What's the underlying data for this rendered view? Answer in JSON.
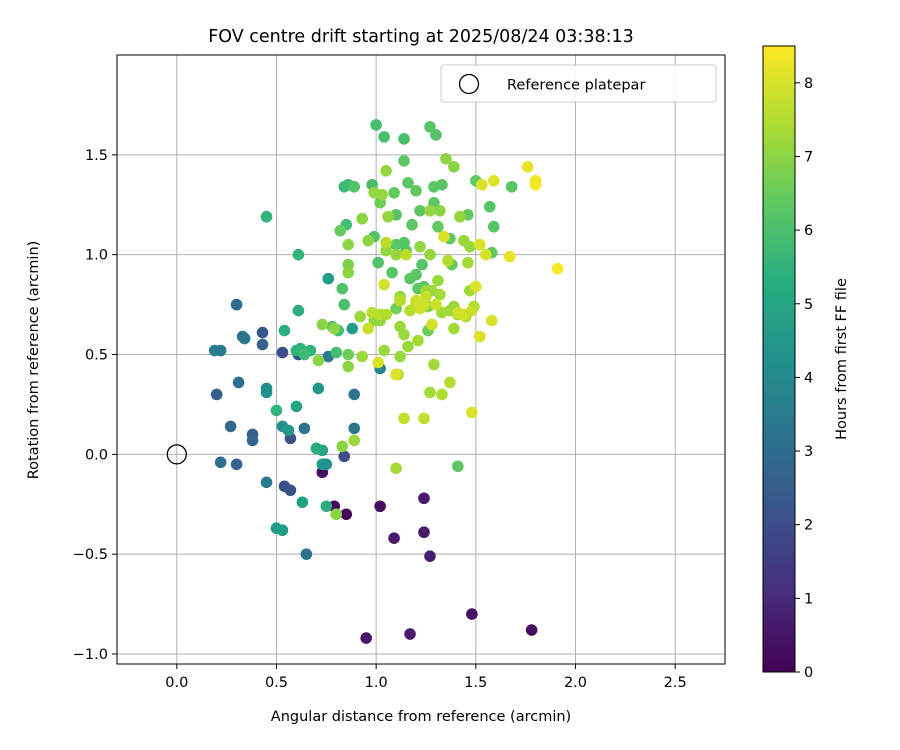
{
  "chart_data": {
    "type": "scatter",
    "title": "FOV centre drift starting at 2025/08/24 03:38:13",
    "xlabel": "Angular distance from reference (arcmin)",
    "ylabel": "Rotation from reference (arcmin)",
    "xlim": [
      -0.3,
      2.75
    ],
    "ylim": [
      -1.05,
      2.0
    ],
    "xticks": [
      0.0,
      0.5,
      1.0,
      1.5,
      2.0,
      2.5
    ],
    "yticks": [
      -1.0,
      -0.5,
      0.0,
      0.5,
      1.0,
      1.5
    ],
    "xtick_labels": [
      "0.0",
      "0.5",
      "1.0",
      "1.5",
      "2.0",
      "2.5"
    ],
    "ytick_labels": [
      "−1.0",
      "−0.5",
      "0.0",
      "0.5",
      "1.0",
      "1.5"
    ],
    "grid": true,
    "legend": {
      "placement": "top-right",
      "entries": [
        {
          "label": "Reference platepar",
          "marker": "open-circle"
        }
      ]
    },
    "reference_point": {
      "x": 0.0,
      "y": 0.0
    },
    "colorbar": {
      "label": "Hours from first FF file",
      "range": [
        0,
        8.5
      ],
      "ticks": [
        0,
        1,
        2,
        3,
        4,
        5,
        6,
        7,
        8
      ],
      "tick_labels": [
        "0",
        "1",
        "2",
        "3",
        "4",
        "5",
        "6",
        "7",
        "8"
      ],
      "colormap": "viridis"
    },
    "points": [
      [
        0.85,
        -0.3,
        0.15
      ],
      [
        0.79,
        -0.26,
        0.2
      ],
      [
        0.73,
        -0.09,
        0.3
      ],
      [
        1.02,
        -0.26,
        0.3
      ],
      [
        1.48,
        -0.8,
        0.4
      ],
      [
        1.78,
        -0.88,
        0.3
      ],
      [
        0.95,
        -0.92,
        0.5
      ],
      [
        1.17,
        -0.9,
        0.6
      ],
      [
        1.09,
        -0.42,
        0.6
      ],
      [
        1.24,
        -0.39,
        0.6
      ],
      [
        1.27,
        -0.51,
        0.7
      ],
      [
        1.24,
        -0.22,
        0.6
      ],
      [
        0.84,
        -0.01,
        2.0
      ],
      [
        0.53,
        0.51,
        2.0
      ],
      [
        0.61,
        0.5,
        2.1
      ],
      [
        0.57,
        0.08,
        2.2
      ],
      [
        0.54,
        -0.16,
        2.1
      ],
      [
        0.57,
        -0.18,
        2.1
      ],
      [
        0.3,
        -0.05,
        2.6
      ],
      [
        0.22,
        -0.04,
        3.0
      ],
      [
        0.27,
        0.14,
        2.9
      ],
      [
        0.38,
        0.1,
        2.5
      ],
      [
        0.38,
        0.07,
        2.8
      ],
      [
        0.2,
        0.3,
        2.5
      ],
      [
        0.43,
        0.61,
        2.3
      ],
      [
        0.43,
        0.55,
        2.6
      ],
      [
        0.31,
        0.36,
        3.0
      ],
      [
        0.3,
        0.75,
        2.9
      ],
      [
        0.33,
        0.59,
        3.2
      ],
      [
        0.34,
        0.58,
        3.3
      ],
      [
        0.19,
        0.52,
        3.6
      ],
      [
        0.22,
        0.52,
        3.4
      ],
      [
        0.45,
        -0.14,
        3.5
      ],
      [
        0.64,
        0.13,
        3.2
      ],
      [
        0.65,
        -0.5,
        3.2
      ],
      [
        0.89,
        0.13,
        3.3
      ],
      [
        0.89,
        0.3,
        3.2
      ],
      [
        0.76,
        0.49,
        3.5
      ],
      [
        1.02,
        0.43,
        3.9
      ],
      [
        0.45,
        0.33,
        4.2
      ],
      [
        0.45,
        0.31,
        4.3
      ],
      [
        0.53,
        0.14,
        4.3
      ],
      [
        0.56,
        0.12,
        4.5
      ],
      [
        0.5,
        -0.37,
        4.6
      ],
      [
        0.53,
        -0.38,
        4.7
      ],
      [
        0.63,
        -0.24,
        4.8
      ],
      [
        0.71,
        0.33,
        4.5
      ],
      [
        0.74,
        -0.05,
        4.3
      ],
      [
        0.73,
        -0.05,
        4.7
      ],
      [
        0.75,
        -0.05,
        4.3
      ],
      [
        0.6,
        0.24,
        5.0
      ],
      [
        0.73,
        0.02,
        5.0
      ],
      [
        0.76,
        0.88,
        4.7
      ],
      [
        0.88,
        0.63,
        4.8
      ],
      [
        0.7,
        0.03,
        5.2
      ],
      [
        0.75,
        -0.26,
        5.3
      ],
      [
        0.54,
        0.62,
        5.3
      ],
      [
        0.61,
        0.72,
        5.3
      ],
      [
        0.6,
        0.52,
        5.5
      ],
      [
        0.62,
        0.53,
        5.6
      ],
      [
        0.5,
        0.22,
        5.5
      ],
      [
        0.45,
        1.19,
        5.5
      ],
      [
        0.61,
        1.0,
        5.5
      ],
      [
        0.67,
        0.52,
        5.5
      ],
      [
        0.64,
        0.5,
        5.8
      ],
      [
        0.84,
        1.34,
        5.8
      ],
      [
        0.86,
        1.35,
        5.8
      ],
      [
        0.85,
        1.15,
        5.9
      ],
      [
        0.8,
        0.51,
        5.9
      ],
      [
        0.81,
        0.62,
        5.9
      ],
      [
        0.78,
        0.64,
        6.1
      ],
      [
        0.84,
        0.75,
        6.0
      ],
      [
        0.83,
        0.83,
        6.1
      ],
      [
        0.98,
        1.35,
        6.0
      ],
      [
        0.89,
        1.34,
        6.1
      ],
      [
        0.82,
        1.12,
        6.5
      ],
      [
        1.0,
        1.65,
        6.0
      ],
      [
        1.04,
        1.59,
        6.0
      ],
      [
        1.14,
        1.58,
        6.0
      ],
      [
        1.27,
        1.64,
        6.2
      ],
      [
        1.3,
        1.6,
        6.2
      ],
      [
        1.14,
        1.47,
        6.3
      ],
      [
        1.16,
        1.36,
        6.3
      ],
      [
        1.09,
        1.31,
        6.4
      ],
      [
        1.2,
        1.32,
        6.4
      ],
      [
        1.29,
        1.34,
        6.3
      ],
      [
        1.33,
        1.35,
        6.3
      ],
      [
        1.22,
        1.22,
        6.3
      ],
      [
        1.29,
        1.26,
        6.3
      ],
      [
        1.18,
        1.15,
        6.3
      ],
      [
        1.1,
        1.2,
        6.2
      ],
      [
        1.14,
        1.06,
        6.2
      ],
      [
        1.1,
        1.05,
        6.3
      ],
      [
        1.15,
        1.02,
        6.2
      ],
      [
        1.23,
        0.95,
        6.2
      ],
      [
        1.2,
        0.9,
        6.3
      ],
      [
        1.21,
        0.83,
        6.3
      ],
      [
        1.24,
        0.84,
        6.3
      ],
      [
        1.08,
        0.91,
        6.2
      ],
      [
        1.01,
        0.96,
        6.1
      ],
      [
        0.99,
        1.09,
        6.1
      ],
      [
        1.17,
        0.88,
        6.3
      ],
      [
        1.31,
        1.14,
        6.4
      ],
      [
        1.37,
        1.08,
        6.4
      ],
      [
        1.38,
        0.95,
        6.5
      ],
      [
        1.46,
        1.2,
        6.4
      ],
      [
        1.5,
        1.37,
        6.4
      ],
      [
        1.57,
        1.24,
        6.2
      ],
      [
        1.59,
        1.14,
        6.2
      ],
      [
        1.68,
        1.34,
        6.2
      ],
      [
        1.58,
        1.01,
        6.4
      ],
      [
        1.41,
        -0.06,
        6.3
      ],
      [
        1.02,
        1.26,
        6.6
      ],
      [
        1.1,
        0.73,
        6.6
      ],
      [
        1.26,
        0.62,
        6.6
      ],
      [
        0.86,
        0.95,
        6.8
      ],
      [
        0.86,
        0.5,
        6.6
      ],
      [
        0.93,
        1.18,
        7.0
      ],
      [
        0.96,
        1.07,
        7.0
      ],
      [
        0.86,
        1.05,
        7.0
      ],
      [
        0.79,
        0.63,
        7.0
      ],
      [
        0.73,
        0.65,
        7.0
      ],
      [
        0.86,
        0.91,
        7.0
      ],
      [
        0.86,
        0.44,
        7.0
      ],
      [
        0.71,
        0.47,
        7.0
      ],
      [
        0.8,
        -0.3,
        7.0
      ],
      [
        0.89,
        0.07,
        7.2
      ],
      [
        0.83,
        0.04,
        7.0
      ],
      [
        1.05,
        1.42,
        7.1
      ],
      [
        0.99,
        1.31,
        7.1
      ],
      [
        1.03,
        1.3,
        7.1
      ],
      [
        1.06,
        1.19,
        7.1
      ],
      [
        1.05,
        1.02,
        7.1
      ],
      [
        1.1,
        1.0,
        7.1
      ],
      [
        1.12,
        0.79,
        7.1
      ],
      [
        1.02,
        0.67,
        7.1
      ],
      [
        0.99,
        0.67,
        7.1
      ],
      [
        0.93,
        0.49,
        7.2
      ],
      [
        0.92,
        0.69,
        7.2
      ],
      [
        1.12,
        0.64,
        7.2
      ],
      [
        1.14,
        0.6,
        7.2
      ],
      [
        1.16,
        0.54,
        7.2
      ],
      [
        1.12,
        0.49,
        7.2
      ],
      [
        1.04,
        0.52,
        7.2
      ],
      [
        1.11,
        0.4,
        7.4
      ],
      [
        1.1,
        -0.07,
        7.3
      ],
      [
        1.35,
        1.48,
        7.0
      ],
      [
        1.39,
        1.44,
        7.0
      ],
      [
        1.27,
        1.22,
        7.1
      ],
      [
        1.42,
        1.19,
        7.1
      ],
      [
        1.32,
        1.22,
        7.0
      ],
      [
        1.27,
        1.0,
        7.1
      ],
      [
        1.22,
        1.04,
        7.1
      ],
      [
        1.26,
        0.74,
        7.0
      ],
      [
        1.2,
        0.75,
        7.1
      ],
      [
        1.25,
        0.82,
        7.2
      ],
      [
        1.28,
        0.82,
        7.2
      ],
      [
        1.31,
        0.87,
        7.2
      ],
      [
        1.32,
        0.8,
        7.3
      ],
      [
        1.33,
        0.71,
        7.3
      ],
      [
        1.37,
        0.72,
        7.3
      ],
      [
        1.39,
        0.74,
        7.2
      ],
      [
        1.41,
        0.7,
        7.3
      ],
      [
        1.39,
        0.63,
        7.3
      ],
      [
        1.44,
        1.07,
        7.2
      ],
      [
        1.47,
        1.04,
        7.2
      ],
      [
        1.46,
        0.96,
        7.3
      ],
      [
        1.47,
        0.82,
        7.3
      ],
      [
        1.49,
        0.74,
        7.5
      ],
      [
        1.45,
        0.69,
        7.4
      ],
      [
        1.36,
        0.97,
        7.5
      ],
      [
        1.27,
        0.31,
        7.3
      ],
      [
        1.29,
        0.45,
        7.3
      ],
      [
        1.33,
        0.3,
        7.5
      ],
      [
        1.37,
        0.36,
        7.5
      ],
      [
        1.21,
        0.57,
        7.3
      ],
      [
        1.14,
        0.18,
        7.7
      ],
      [
        1.24,
        0.18,
        7.7
      ],
      [
        1.05,
        1.06,
        7.6
      ],
      [
        1.15,
        1.0,
        7.6
      ],
      [
        1.12,
        0.77,
        7.6
      ],
      [
        1.02,
        0.7,
        7.6
      ],
      [
        0.98,
        0.71,
        7.6
      ],
      [
        1.05,
        0.7,
        7.5
      ],
      [
        0.96,
        0.63,
        7.8
      ],
      [
        1.17,
        0.72,
        7.6
      ],
      [
        1.2,
        0.77,
        7.8
      ],
      [
        1.25,
        0.79,
        7.8
      ],
      [
        1.24,
        0.75,
        7.8
      ],
      [
        1.22,
        0.76,
        7.9
      ],
      [
        1.22,
        0.73,
        7.9
      ],
      [
        1.28,
        0.65,
        7.9
      ],
      [
        1.3,
        0.75,
        7.8
      ],
      [
        1.34,
        1.09,
        8.0
      ],
      [
        1.41,
        0.71,
        7.9
      ],
      [
        1.44,
        0.7,
        7.9
      ],
      [
        1.5,
        0.84,
        8.0
      ],
      [
        1.52,
        1.05,
        8.0
      ],
      [
        1.55,
        1.0,
        8.0
      ],
      [
        1.52,
        0.59,
        8.0
      ],
      [
        1.58,
        0.67,
        8.0
      ],
      [
        1.48,
        0.21,
        8.0
      ],
      [
        1.53,
        1.35,
        8.0
      ],
      [
        1.59,
        1.37,
        8.1
      ],
      [
        1.76,
        1.44,
        8.2
      ],
      [
        1.8,
        1.37,
        8.3
      ],
      [
        1.8,
        1.35,
        8.4
      ],
      [
        1.67,
        0.99,
        8.2
      ],
      [
        1.91,
        0.93,
        8.4
      ],
      [
        1.1,
        0.4,
        8.0
      ],
      [
        1.01,
        0.46,
        8.0
      ],
      [
        1.04,
        0.85,
        7.9
      ],
      [
        1.48,
        0.72,
        7.8
      ]
    ]
  }
}
